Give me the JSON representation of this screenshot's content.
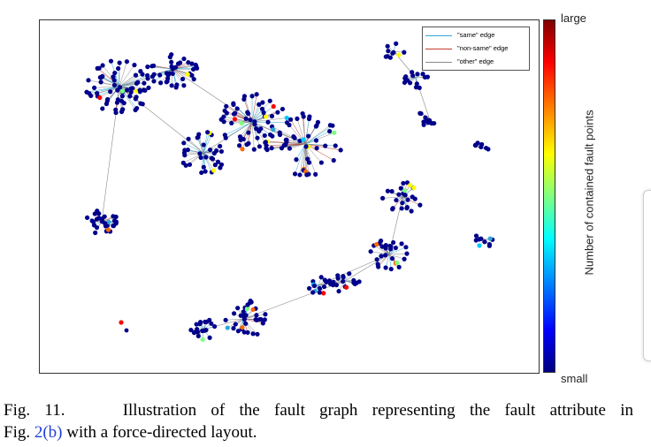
{
  "figure": {
    "legend": [
      {
        "label": "\"same\" edge",
        "color": "#2fa8d8"
      },
      {
        "label": "\"non-same\" edge",
        "color": "#c0392b"
      },
      {
        "label": "\"other\" edge",
        "color": "#8a8a8a"
      }
    ],
    "colorbar": {
      "top_label": "large",
      "bottom_label": "small",
      "title": "Number of contained fault points"
    },
    "colors": {
      "node_default": "#00008b",
      "node_accents": [
        "#ff0000",
        "#ff6a00",
        "#ffff00",
        "#7fff7f",
        "#00c8ff",
        "#2fa8d8"
      ]
    }
  },
  "caption": {
    "fig_number": "Fig. 11.",
    "text_line1": "Illustration of the fault graph representing the fault attribute in",
    "text_line2_pre": "Fig. ",
    "link": "2(b)",
    "text_line2_post": " with a force-directed layout."
  }
}
